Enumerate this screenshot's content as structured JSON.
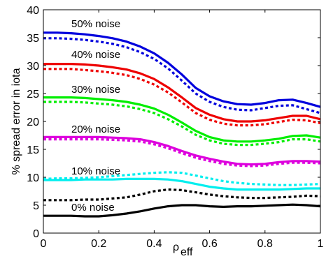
{
  "chart_data": {
    "type": "line",
    "xlabel": "ρ",
    "xlabel_sub": "eff",
    "ylabel": "% spread error in iota",
    "xlim": [
      0,
      1
    ],
    "ylim": [
      0,
      40
    ],
    "x_ticks": [
      "0",
      "0.2",
      "0.4",
      "0.6",
      "0.8",
      "1"
    ],
    "y_ticks": [
      "0",
      "5",
      "10",
      "15",
      "20",
      "25",
      "30",
      "35",
      "40"
    ],
    "grid": false,
    "colors": {
      "noise50": "#0000dd",
      "noise40": "#ee0000",
      "noise30": "#00ee00",
      "noise20": "#dd00dd",
      "noise10": "#00eeee",
      "noise0": "#000000"
    },
    "annotations": [
      "50% noise",
      "40% noise",
      "30% noise",
      "20% noise",
      "10% noise",
      "0% noise"
    ],
    "x": [
      0,
      0.05,
      0.1,
      0.15,
      0.2,
      0.25,
      0.3,
      0.35,
      0.4,
      0.45,
      0.5,
      0.55,
      0.6,
      0.65,
      0.7,
      0.75,
      0.8,
      0.85,
      0.9,
      0.95,
      1.0
    ],
    "series": [
      {
        "key": "noise50",
        "dash": false,
        "values": [
          35.9,
          35.9,
          35.8,
          35.6,
          35.3,
          34.9,
          34.3,
          33.4,
          32.2,
          30.5,
          28.4,
          26.0,
          24.5,
          23.6,
          23.1,
          23.0,
          23.3,
          23.8,
          23.9,
          23.3,
          22.6
        ]
      },
      {
        "key": "noise50",
        "dash": true,
        "values": [
          34.9,
          34.9,
          34.8,
          34.6,
          34.3,
          33.9,
          33.3,
          32.4,
          31.2,
          29.5,
          27.3,
          25.0,
          23.5,
          22.6,
          22.1,
          22.0,
          22.4,
          22.8,
          22.9,
          22.2,
          21.5
        ]
      },
      {
        "key": "noise40",
        "dash": false,
        "values": [
          30.3,
          30.3,
          30.3,
          30.2,
          30.0,
          29.7,
          29.3,
          28.6,
          27.6,
          26.1,
          24.3,
          22.4,
          21.2,
          20.4,
          20.0,
          20.0,
          20.2,
          20.6,
          21.0,
          21.0,
          20.4
        ]
      },
      {
        "key": "noise40",
        "dash": true,
        "values": [
          29.4,
          29.4,
          29.4,
          29.2,
          29.0,
          28.7,
          28.3,
          27.6,
          26.6,
          25.2,
          23.4,
          21.5,
          20.3,
          19.6,
          19.3,
          19.3,
          19.5,
          19.9,
          20.3,
          20.2,
          19.7
        ]
      },
      {
        "key": "noise30",
        "dash": false,
        "values": [
          24.3,
          24.3,
          24.3,
          24.2,
          24.0,
          23.8,
          23.5,
          23.0,
          22.3,
          21.2,
          19.8,
          18.3,
          17.2,
          16.6,
          16.4,
          16.4,
          16.6,
          16.9,
          17.4,
          17.5,
          17.1
        ]
      },
      {
        "key": "noise30",
        "dash": true,
        "values": [
          23.5,
          23.5,
          23.5,
          23.4,
          23.2,
          23.0,
          22.7,
          22.2,
          21.5,
          20.4,
          19.1,
          17.6,
          16.6,
          16.0,
          15.8,
          15.8,
          16.0,
          16.3,
          16.8,
          16.8,
          16.4
        ]
      },
      {
        "key": "noise20",
        "dash": false,
        "values": [
          17.2,
          17.2,
          17.2,
          17.2,
          17.2,
          17.1,
          17.0,
          16.8,
          16.3,
          15.6,
          14.7,
          13.9,
          13.3,
          12.8,
          12.4,
          12.3,
          12.4,
          12.7,
          12.9,
          12.9,
          12.8
        ]
      },
      {
        "key": "noise20",
        "dash": true,
        "values": [
          16.8,
          16.8,
          16.8,
          16.8,
          16.8,
          16.7,
          16.6,
          16.4,
          15.9,
          15.2,
          14.3,
          13.5,
          12.9,
          12.4,
          12.1,
          12.0,
          12.1,
          12.4,
          12.6,
          12.6,
          12.5
        ]
      },
      {
        "key": "noise10",
        "dash": false,
        "values": [
          9.5,
          9.5,
          9.5,
          9.6,
          9.6,
          9.6,
          9.7,
          9.7,
          9.7,
          9.6,
          9.3,
          8.8,
          8.3,
          8.0,
          7.8,
          7.8,
          7.8,
          7.8,
          7.9,
          8.0,
          8.0
        ]
      },
      {
        "key": "noise10",
        "dash": true,
        "values": [
          9.7,
          9.8,
          9.8,
          9.9,
          10.0,
          10.2,
          10.4,
          10.6,
          10.8,
          10.9,
          10.8,
          10.3,
          9.8,
          9.3,
          9.0,
          8.8,
          8.7,
          8.6,
          8.6,
          8.7,
          8.8
        ]
      },
      {
        "key": "noise0",
        "dash": true,
        "values": [
          5.9,
          5.9,
          5.9,
          6.0,
          6.0,
          6.2,
          6.4,
          6.9,
          7.5,
          7.8,
          7.7,
          7.3,
          6.9,
          6.6,
          6.4,
          6.3,
          6.3,
          6.4,
          6.5,
          6.7,
          6.6
        ]
      },
      {
        "key": "noise0",
        "dash": false,
        "values": [
          3.1,
          3.1,
          3.1,
          3.0,
          3.0,
          3.2,
          3.5,
          3.9,
          4.4,
          4.8,
          5.0,
          5.0,
          4.8,
          4.7,
          4.8,
          4.8,
          4.9,
          5.0,
          5.1,
          5.0,
          4.8
        ]
      }
    ]
  }
}
